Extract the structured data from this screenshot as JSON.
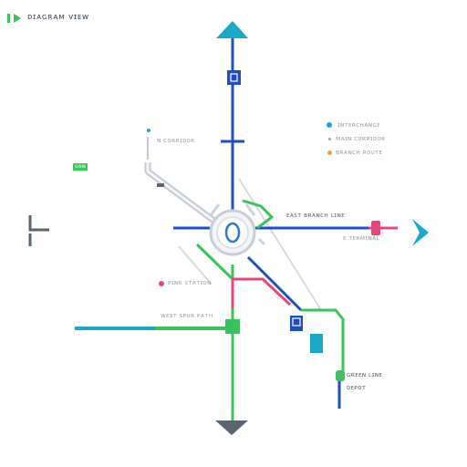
{
  "header": {
    "title": "ᴅɪᴀɢʀᴀᴍ ᴠɪᴇᴡ"
  },
  "legend": {
    "items": [
      {
        "label": "ɪɴᴛᴇʀᴄʜᴀɴɢᴇ",
        "color": "#1ba9c9"
      },
      {
        "label": "ᴍᴀɪɴ ᴄᴏʀʀɪᴅᴏʀ",
        "color": "#9aa2ad"
      },
      {
        "label": "ʙʀᴀɴᴄʜ ʀᴏᴜᴛᴇ",
        "color": "#f2a23a"
      }
    ]
  },
  "labels": {
    "north": "ɴ ᴄᴏʀʀɪᴅᴏʀ",
    "east_upper": "ᴇᴀsᴛ ʙʀᴀɴᴄʜ ʟɪɴᴇ",
    "east_lower": "ᴇ ᴛᴇʀᴍɪɴᴀʟ",
    "southwest": "ᴘɪɴᴋ sᴛᴀᴛɪᴏɴ",
    "west": "ᴡᴇsᴛ sᴘᴜʀ ᴘᴀᴛʜ",
    "south_tag": "ɢʀᴇᴇɴ ʟɪɴᴇ",
    "south_sub": "ᴅᴇᴘᴏᴛ",
    "green_tag": "ɢʀɴ"
  },
  "colors": {
    "blue": "#1f4fbf",
    "green": "#39c35a",
    "cyan": "#1ba9c9",
    "pink": "#e8457d",
    "gray": "#c3c8cf",
    "dark_gray": "#5b6470"
  },
  "icons": {
    "north_arrow": "arrow-up-icon",
    "south_arrow": "arrow-down-icon",
    "east_arrow": "arrow-right-icon",
    "hub": "hub-node-icon",
    "west_bracket": "bracket-icon"
  }
}
